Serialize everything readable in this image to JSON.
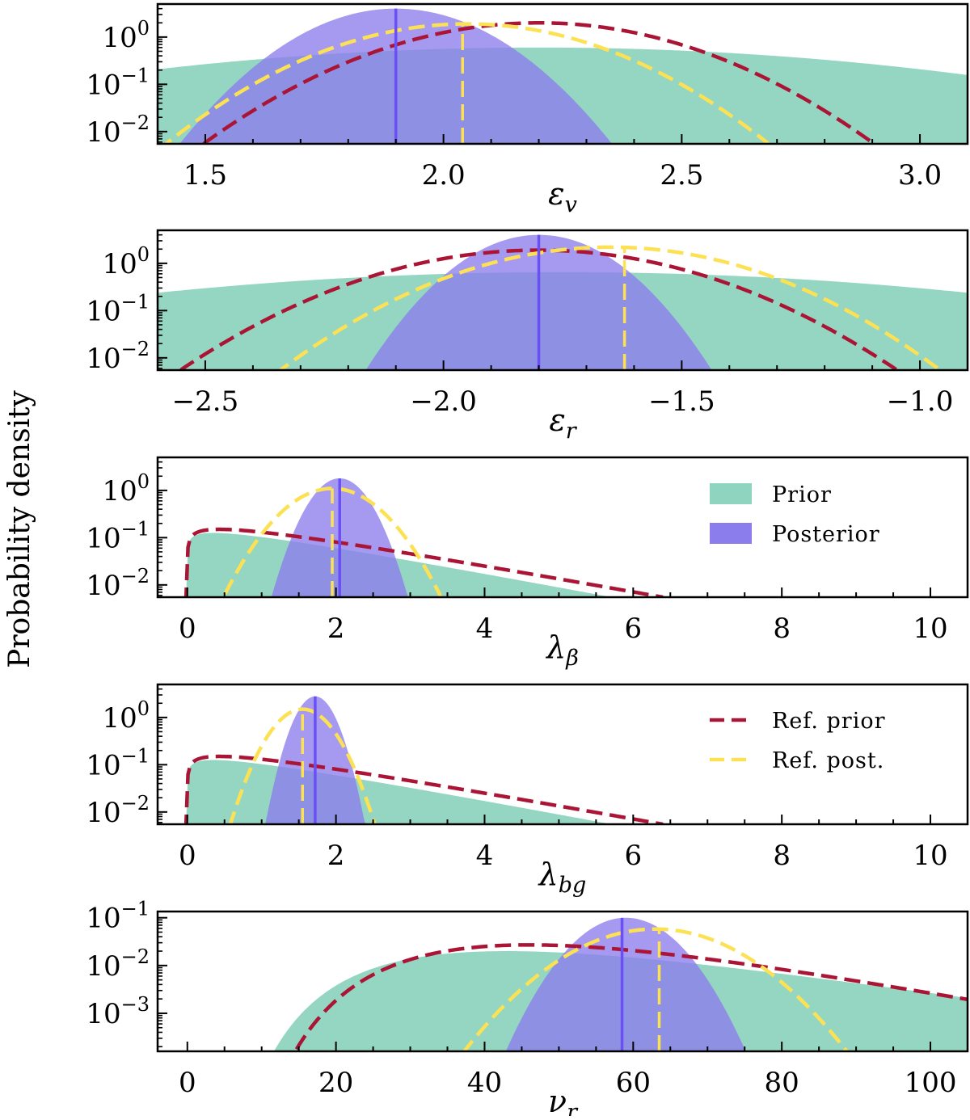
{
  "figure": {
    "ylabel": "Probability density",
    "colors": {
      "prior": "#8fd4bf",
      "posterior": "#8c7dec",
      "posterior_median": "#6a4ff5",
      "ref_prior": "#ab1535",
      "ref_post": "#fde154"
    },
    "legend": {
      "prior": "Prior",
      "posterior": "Posterior",
      "ref_prior": "Ref. prior",
      "ref_post": "Ref. post."
    }
  },
  "chart_data": [
    {
      "type": "area",
      "xlabel": {
        "main": "ε",
        "sub": "v"
      },
      "xscale": "linear",
      "yscale": "log",
      "xlim": [
        1.4,
        3.1
      ],
      "ylim": [
        0.0055,
        5
      ],
      "xticks": [
        1.5,
        2.0,
        2.5,
        3.0
      ],
      "xtick_labels": [
        "1.5",
        "2.0",
        "2.5",
        "3.0"
      ],
      "xminor_step": 0.1,
      "yticks": [
        {
          "value": 1,
          "base": "10",
          "exp": "0"
        },
        {
          "value": 0.1,
          "base": "10",
          "exp": "−1"
        },
        {
          "value": 0.01,
          "base": "10",
          "exp": "−2"
        }
      ],
      "legend": "none",
      "series": {
        "prior": {
          "kind": "fill",
          "shape": "gaussian",
          "peak": 0.6,
          "center": 2.2,
          "sigma": 0.55
        },
        "posterior": {
          "kind": "fill",
          "shape": "gaussian",
          "peak": 4.0,
          "center": 1.9,
          "sigma": 0.125,
          "median": 1.9
        },
        "ref_prior": {
          "kind": "dashed",
          "shape": "gaussian",
          "peak": 2.0,
          "center": 2.2,
          "sigma": 0.205
        },
        "ref_post": {
          "kind": "dashed",
          "shape": "gaussian",
          "peak": 1.9,
          "center": 2.05,
          "sigma": 0.185,
          "median": 2.04
        }
      }
    },
    {
      "type": "area",
      "xlabel": {
        "main": "ε",
        "sub": "r"
      },
      "xscale": "linear",
      "yscale": "log",
      "xlim": [
        -2.6,
        -0.9
      ],
      "ylim": [
        0.0055,
        5
      ],
      "xticks": [
        -2.5,
        -2.0,
        -1.5,
        -1.0
      ],
      "xtick_labels": [
        "−2.5",
        "−2.0",
        "−1.5",
        "−1.0"
      ],
      "xminor_step": 0.1,
      "yticks": [
        {
          "value": 1,
          "base": "10",
          "exp": "0"
        },
        {
          "value": 0.1,
          "base": "10",
          "exp": "−1"
        },
        {
          "value": 0.01,
          "base": "10",
          "exp": "−2"
        }
      ],
      "legend": "none",
      "series": {
        "prior": {
          "kind": "fill",
          "shape": "gaussian",
          "peak": 0.65,
          "center": -1.75,
          "sigma": 0.6
        },
        "posterior": {
          "kind": "fill",
          "shape": "gaussian",
          "peak": 4.0,
          "center": -1.8,
          "sigma": 0.1
        },
        "ref_prior": {
          "kind": "dashed",
          "shape": "gaussian",
          "peak": 1.9,
          "center": -1.8,
          "sigma": 0.22
        },
        "ref_post": {
          "kind": "dashed",
          "shape": "gaussian",
          "peak": 2.2,
          "center": -1.65,
          "sigma": 0.2
        },
        "posterior_median": -1.8,
        "ref_post_median": -1.62
      }
    },
    {
      "type": "area",
      "xlabel": {
        "main": "λ",
        "sub": "β"
      },
      "xscale": "linear",
      "yscale": "log",
      "xlim": [
        -0.4,
        10.5
      ],
      "ylim": [
        0.0055,
        5
      ],
      "xticks": [
        0,
        2,
        4,
        6,
        8,
        10
      ],
      "xtick_labels": [
        "0",
        "2",
        "4",
        "6",
        "8",
        "10"
      ],
      "xminor_step": 0.5,
      "yticks": [
        {
          "value": 1,
          "base": "10",
          "exp": "0"
        },
        {
          "value": 0.1,
          "base": "10",
          "exp": "−1"
        },
        {
          "value": 0.01,
          "base": "10",
          "exp": "−2"
        }
      ],
      "legend": "prior-posterior",
      "series": {
        "prior": {
          "kind": "fill",
          "shape": "gamma",
          "amp": 0.21,
          "k": 1.25,
          "theta": 1.4
        },
        "posterior": {
          "kind": "fill",
          "shape": "gaussian",
          "peak": 1.8,
          "center": 2.05,
          "sigma": 0.27
        },
        "ref_prior": {
          "kind": "dashed",
          "shape": "gamma",
          "amp": 0.26,
          "k": 1.3,
          "theta": 1.45
        },
        "ref_post": {
          "kind": "dashed",
          "shape": "gaussian",
          "peak": 1.1,
          "center": 1.95,
          "sigma": 0.45
        },
        "posterior_median": 2.05,
        "ref_post_median": 1.95
      }
    },
    {
      "type": "area",
      "xlabel": {
        "main": "λ",
        "sub": "bg"
      },
      "xscale": "linear",
      "yscale": "log",
      "xlim": [
        -0.4,
        10.5
      ],
      "ylim": [
        0.0055,
        5
      ],
      "xticks": [
        0,
        2,
        4,
        6,
        8,
        10
      ],
      "xtick_labels": [
        "0",
        "2",
        "4",
        "6",
        "8",
        "10"
      ],
      "xminor_step": 0.5,
      "yticks": [
        {
          "value": 1,
          "base": "10",
          "exp": "0"
        },
        {
          "value": 0.1,
          "base": "10",
          "exp": "−1"
        },
        {
          "value": 0.01,
          "base": "10",
          "exp": "−2"
        }
      ],
      "legend": "ref",
      "series": {
        "prior": {
          "kind": "fill",
          "shape": "gamma",
          "amp": 0.21,
          "k": 1.25,
          "theta": 1.4
        },
        "posterior": {
          "kind": "fill",
          "shape": "gaussian",
          "peak": 2.8,
          "center": 1.72,
          "sigma": 0.19
        },
        "ref_prior": {
          "kind": "dashed",
          "shape": "gamma",
          "amp": 0.26,
          "k": 1.3,
          "theta": 1.45
        },
        "ref_post": {
          "kind": "dashed",
          "shape": "gaussian",
          "peak": 1.5,
          "center": 1.55,
          "sigma": 0.29
        },
        "posterior_median": 1.72,
        "ref_post_median": 1.55
      }
    },
    {
      "type": "area",
      "xlabel": {
        "main": "ν",
        "sub": "r"
      },
      "xscale": "linear",
      "yscale": "log",
      "xlim": [
        -4,
        105
      ],
      "ylim": [
        0.00016,
        0.135
      ],
      "xticks": [
        0,
        20,
        40,
        60,
        80,
        100
      ],
      "xtick_labels": [
        "0",
        "20",
        "40",
        "60",
        "80",
        "100"
      ],
      "xminor_step": 5,
      "yticks": [
        {
          "value": 0.1,
          "base": "10",
          "exp": "−1"
        },
        {
          "value": 0.01,
          "base": "10",
          "exp": "−2"
        },
        {
          "value": 0.001,
          "base": "10",
          "exp": "−3"
        }
      ],
      "legend": "none",
      "series": {
        "prior": {
          "kind": "fill",
          "shape": "lognormal",
          "peak": 0.02,
          "mode": 43,
          "s": 0.42
        },
        "posterior": {
          "kind": "fill",
          "shape": "gaussian",
          "peak": 0.1,
          "center": 59,
          "sigma": 4.5
        },
        "ref_prior": {
          "kind": "dashed",
          "shape": "lognormal",
          "peak": 0.027,
          "mode": 46,
          "s": 0.36
        },
        "ref_post": {
          "kind": "dashed",
          "shape": "gaussian",
          "peak": 0.058,
          "center": 63,
          "sigma": 7.5
        },
        "posterior_median": 58.5,
        "ref_post_median": 63.5
      }
    }
  ]
}
